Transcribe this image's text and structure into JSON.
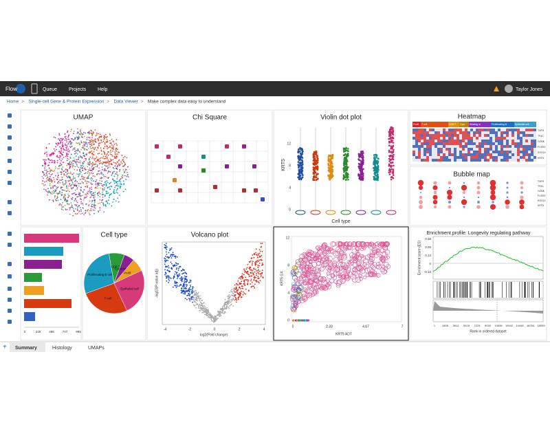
{
  "nav": {
    "logo": "Flow",
    "menu": [
      "Queue",
      "Projects",
      "Help"
    ],
    "user": "Taylor Jones"
  },
  "breadcrumb": [
    "Home",
    "Single-cell Gene & Protein Expression",
    "Data Viewer",
    "Make complex data easy to understand"
  ],
  "panels": {
    "umap": {
      "title": "UMAP"
    },
    "chi_square": {
      "title": "Chi Square"
    },
    "violin": {
      "title": "Violin dot plot",
      "y_label": "KRT5",
      "x_label": "Cell type",
      "y_ticks": [
        "0",
        "4",
        "8",
        "12"
      ]
    },
    "heatmap": {
      "title": "Heatmap",
      "groups": [
        "Prolif",
        "T cell",
        "CD8 T",
        "Cyto",
        "Resting m",
        "Proliferating B",
        "Epithelial cell"
      ],
      "genes": [
        "TNFS",
        "TFAC",
        "GZMK",
        "FCER2",
        "RGS13",
        "KRT5"
      ]
    },
    "bubble": {
      "title": "Bubble map",
      "genes": [
        "TNFS",
        "TFAC",
        "GZMK",
        "FCER2",
        "RGS13",
        "KRT5"
      ]
    },
    "cell_type": {
      "title": "Cell type",
      "x_ticks": [
        "0",
        "248",
        "496",
        "747",
        "995"
      ],
      "pie_labels": [
        "Proliferating B cell",
        "CD8 T",
        "Cytotoxic T",
        "Prolif",
        "Epithelial cell",
        "T cell"
      ]
    },
    "volcano": {
      "title": "Volcano plot",
      "x_label": "log2(Fold change)",
      "y_label": "-log10(P-value adj)",
      "x_ticks": [
        "-4",
        "-2",
        "0",
        "2",
        "4"
      ]
    },
    "scatter": {
      "x_label": "KRT5 ADT",
      "y_label": "KRT5 GX",
      "x_ticks": [
        "0",
        "2.33",
        "4.67",
        "7"
      ],
      "y_ticks": [
        "0",
        "4",
        "8",
        "12"
      ]
    },
    "enrichment": {
      "title": "Enrichment profile: Longevity regulating pathway",
      "y_label": "Enrichment score (ES)",
      "x_label": "Rank in ordered dataset",
      "y_ticks": [
        "0.38",
        "0.25",
        "0.13",
        "0",
        "-0.13"
      ],
      "x_ticks": [
        "1",
        "1806",
        "3612",
        "5418",
        "7224",
        "9030",
        "10836",
        "12642",
        "14448",
        "16254",
        "18059"
      ]
    }
  },
  "tabs": [
    "Summary",
    "Histology",
    "UMAPs"
  ]
}
